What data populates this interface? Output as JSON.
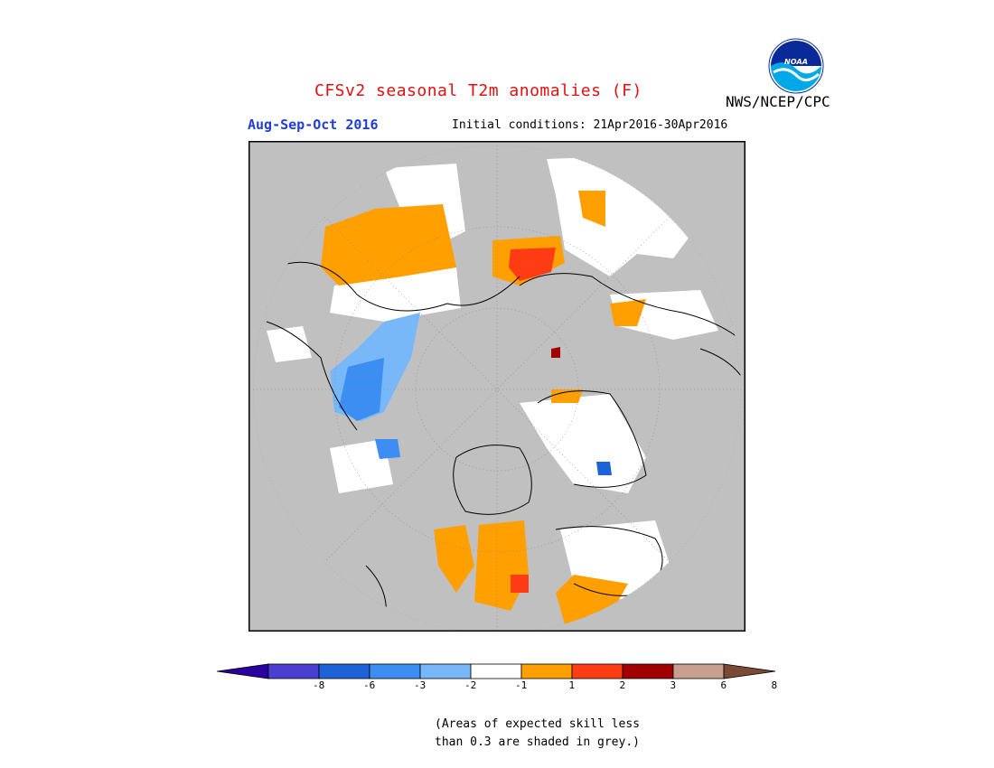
{
  "title": "CFSv2 seasonal T2m anomalies (F)",
  "season": "Aug-Sep-Oct 2016",
  "initial_conditions": "Initial conditions: 21Apr2016-30Apr2016",
  "agency": "NWS/NCEP/CPC",
  "logo_text": "NOAA",
  "colors": {
    "title": "#e01010",
    "season": "#1f3fd8",
    "land_grey": "#c0c0c0",
    "neutral": "#ffffff"
  },
  "colorbar": {
    "bins": [
      {
        "color": "#2a00a0",
        "arrow": "left"
      },
      {
        "color": "#4a3fd0"
      },
      {
        "color": "#1e62d8"
      },
      {
        "color": "#3c8ef2"
      },
      {
        "color": "#78b8f8"
      },
      {
        "color": "#ffffff"
      },
      {
        "color": "#ffa000"
      },
      {
        "color": "#ff3c14"
      },
      {
        "color": "#a00000"
      },
      {
        "color": "#c8a090"
      },
      {
        "color": "#7a4a36",
        "arrow": "right"
      }
    ],
    "tick_labels": [
      "-8",
      "-6",
      "-3",
      "-2",
      "-1",
      "1",
      "2",
      "3",
      "6",
      "8"
    ]
  },
  "note": {
    "line1": "(Areas of expected skill less",
    "line2": "than 0.3 are shaded in grey.)"
  }
}
